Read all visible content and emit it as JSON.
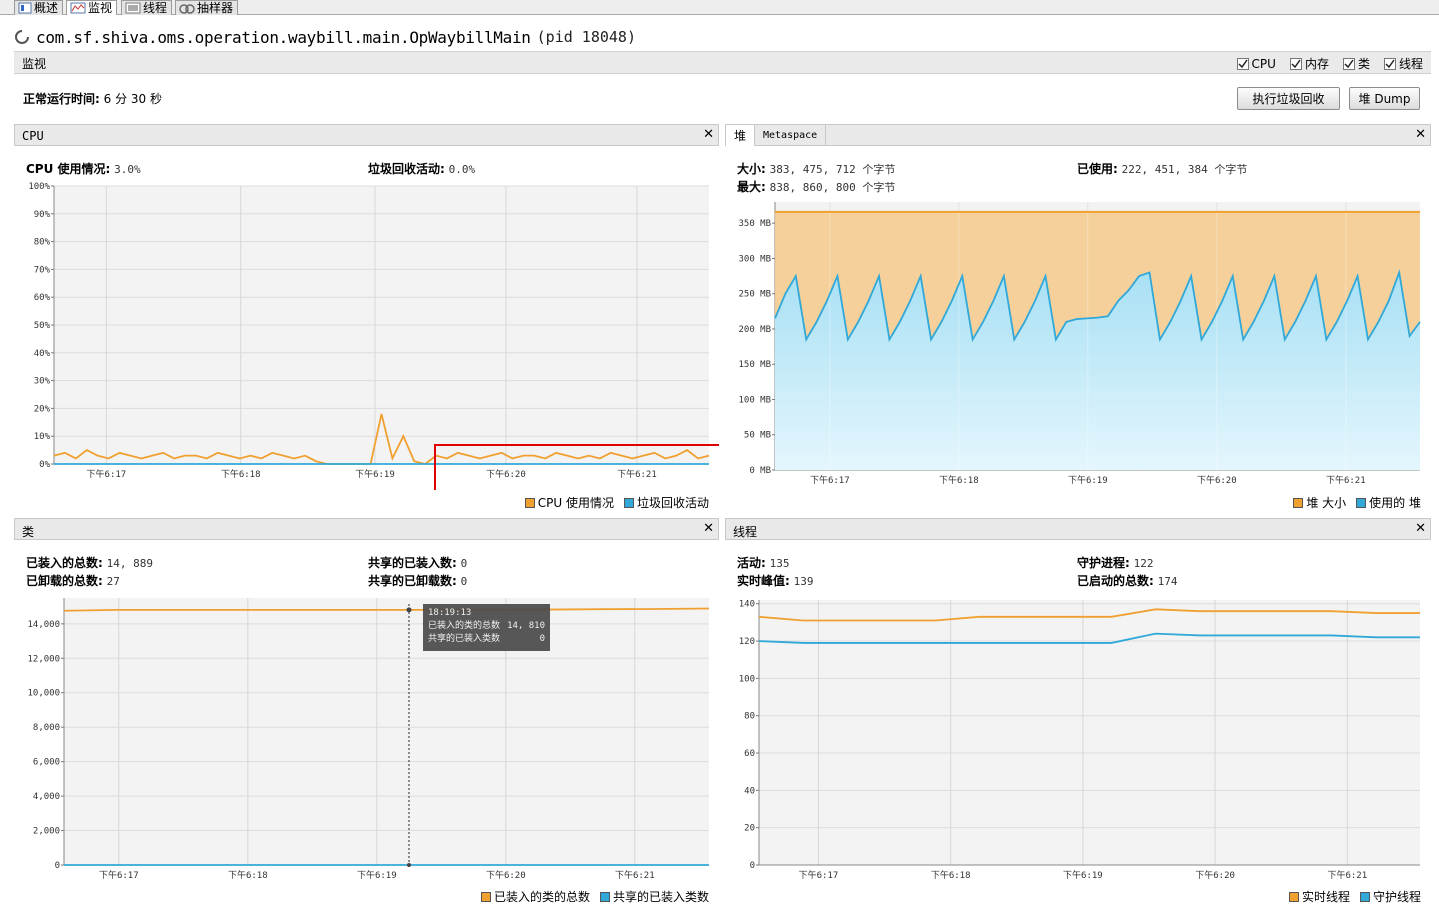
{
  "tabs": [
    {
      "label": "概述",
      "icon": "info-icon",
      "active": false
    },
    {
      "label": "监视",
      "icon": "monitor-chart-icon",
      "active": true
    },
    {
      "label": "线程",
      "icon": "threads-icon",
      "active": false
    },
    {
      "label": "抽样器",
      "icon": "sampler-icon",
      "active": false
    }
  ],
  "app": {
    "title": "com.sf.shiva.oms.operation.waybill.main.OpWaybillMain",
    "pid": "(pid 18048)"
  },
  "monitor": {
    "label": "监视",
    "checkboxes": [
      {
        "label": "CPU",
        "checked": true
      },
      {
        "label": "内存",
        "checked": true
      },
      {
        "label": "类",
        "checked": true
      },
      {
        "label": "线程",
        "checked": true
      }
    ],
    "uptime_label": "正常运行时间:",
    "uptime_value": "6 分 30 秒",
    "gc_button": "执行垃圾回收",
    "dump_button": "堆 Dump"
  },
  "cpu_panel": {
    "title": "CPU",
    "usage_label": "CPU 使用情况:",
    "usage_value": "3.0%",
    "gc_label": "垃圾回收活动:",
    "gc_value": "0.0%",
    "legend": [
      "CPU 使用情况",
      "垃圾回收活动"
    ]
  },
  "heap_panel": {
    "tabs": [
      "堆",
      "Metaspace"
    ],
    "size_label": "大小:",
    "size_value": "383, 475, 712 个字节",
    "max_label": "最大:",
    "max_value": "838, 860, 800 个字节",
    "used_label": "已使用:",
    "used_value": "222, 451, 384 个字节",
    "legend": [
      "堆 大小",
      "使用的 堆"
    ]
  },
  "class_panel": {
    "title": "类",
    "loaded_label": "已装入的总数:",
    "loaded_value": "14, 889",
    "unloaded_label": "已卸载的总数:",
    "unloaded_value": "27",
    "shared_loaded_label": "共享的已装入数:",
    "shared_loaded_value": "0",
    "shared_unloaded_label": "共享的已卸载数:",
    "shared_unloaded_value": "0",
    "tooltip": {
      "time": "18:19:13",
      "row1_label": "已装入的类的总数",
      "row1_value": "14, 810",
      "row2_label": "共享的已装入类数",
      "row2_value": "0"
    },
    "legend": [
      "已装入的类的总数",
      "共享的已装入类数"
    ]
  },
  "thread_panel": {
    "title": "线程",
    "live_label": "活动:",
    "live_value": "135",
    "peak_label": "实时峰值:",
    "peak_value": "139",
    "daemon_label": "守护进程:",
    "daemon_value": "122",
    "started_label": "已启动的总数:",
    "started_value": "174",
    "legend": [
      "实时线程",
      "守护线程"
    ]
  },
  "colors": {
    "orange": "#f0a030",
    "blue": "#30a8d8",
    "heap_fill": "#f5cc90",
    "used_fill_top": "#a8e0f4",
    "used_fill_bottom": "#e4f6fd",
    "highlight": "#e00000"
  },
  "chart_data": [
    {
      "type": "line",
      "id": "cpu",
      "x_labels": [
        "下午6:17",
        "下午6:18",
        "下午6:19",
        "下午6:20",
        "下午6:21"
      ],
      "y_ticks": [
        "100%",
        "90%",
        "80%",
        "70%",
        "60%",
        "50%",
        "40%",
        "30%",
        "20%",
        "10%",
        "0%"
      ],
      "ylim": [
        0,
        100
      ],
      "series": [
        {
          "name": "CPU 使用情况",
          "values": [
            3,
            4,
            2,
            5,
            3,
            2,
            4,
            3,
            2,
            3,
            4,
            2,
            3,
            3,
            2,
            4,
            3,
            2,
            3,
            2,
            4,
            3,
            2,
            3,
            1,
            0,
            0,
            0,
            0,
            0,
            18,
            2,
            10,
            1,
            0,
            3,
            2,
            4,
            3,
            2,
            3,
            4,
            2,
            3,
            3,
            2,
            4,
            3,
            2,
            3,
            2,
            4,
            3,
            2,
            3,
            4,
            2,
            3,
            5,
            2,
            3
          ]
        },
        {
          "name": "垃圾回收活动",
          "values": [
            0,
            0,
            0,
            0,
            0,
            0,
            0,
            0,
            0,
            0,
            0
          ]
        }
      ]
    },
    {
      "type": "area",
      "id": "heap",
      "x_labels": [
        "下午6:17",
        "下午6:18",
        "下午6:19",
        "下午6:20",
        "下午6:21"
      ],
      "y_ticks": [
        "350 MB",
        "300 MB",
        "250 MB",
        "200 MB",
        "150 MB",
        "100 MB",
        "50 MB",
        "0 MB"
      ],
      "ylim": [
        0,
        380
      ],
      "series": [
        {
          "name": "堆 大小",
          "values": [
            366,
            366
          ]
        },
        {
          "name": "使用的 堆",
          "values": [
            215,
            250,
            275,
            185,
            210,
            240,
            275,
            185,
            210,
            240,
            275,
            185,
            210,
            240,
            275,
            185,
            210,
            240,
            275,
            185,
            210,
            240,
            275,
            185,
            210,
            240,
            275,
            185,
            210,
            214,
            215,
            216,
            218,
            240,
            255,
            275,
            280,
            185,
            210,
            240,
            275,
            185,
            210,
            240,
            275,
            185,
            210,
            240,
            275,
            185,
            210,
            240,
            275,
            185,
            210,
            240,
            275,
            185,
            210,
            240,
            280,
            190,
            210
          ]
        }
      ]
    },
    {
      "type": "line",
      "id": "classes",
      "x_labels": [
        "下午6:17",
        "下午6:18",
        "下午6:19",
        "下午6:20",
        "下午6:21"
      ],
      "y_ticks": [
        "14,000",
        "12,000",
        "10,000",
        "8,000",
        "6,000",
        "4,000",
        "2,000",
        "0"
      ],
      "ylim": [
        0,
        15500
      ],
      "series": [
        {
          "name": "已装入的类的总数",
          "values": [
            14760,
            14810,
            14810,
            14810,
            14810,
            14810,
            14810,
            14810,
            14830,
            14830,
            14850,
            14860,
            14889
          ]
        },
        {
          "name": "共享的已装入类数",
          "values": [
            0,
            0
          ]
        }
      ]
    },
    {
      "type": "line",
      "id": "threads",
      "x_labels": [
        "下午6:17",
        "下午6:18",
        "下午6:19",
        "下午6:20",
        "下午6:21"
      ],
      "y_ticks": [
        "140",
        "120",
        "100",
        "80",
        "60",
        "40",
        "20",
        "0"
      ],
      "ylim": [
        0,
        142
      ],
      "series": [
        {
          "name": "实时线程",
          "values": [
            133,
            131,
            131,
            131,
            131,
            133,
            133,
            133,
            133,
            137,
            136,
            136,
            136,
            136,
            135,
            135
          ]
        },
        {
          "name": "守护线程",
          "values": [
            120,
            119,
            119,
            119,
            119,
            119,
            119,
            119,
            119,
            124,
            123,
            123,
            123,
            123,
            122,
            122
          ]
        }
      ]
    }
  ]
}
